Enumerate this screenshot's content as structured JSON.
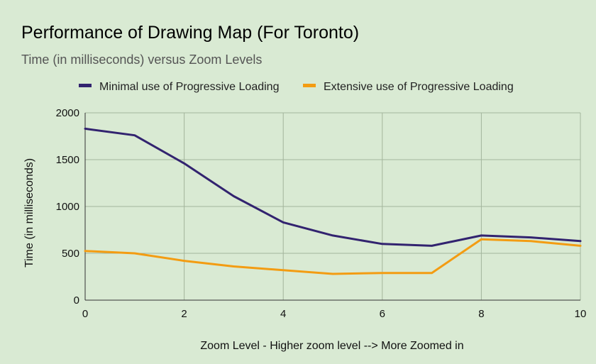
{
  "chart_data": {
    "type": "line",
    "title": "Performance of Drawing Map (For Toronto)",
    "subtitle": "Time (in milliseconds) versus Zoom Levels",
    "xlabel": "Zoom Level - Higher zoom level --> More Zoomed in",
    "ylabel": "Time (in milliseconds)",
    "xlim": [
      0,
      10
    ],
    "ylim": [
      0,
      2000
    ],
    "xticks": [
      0,
      2,
      4,
      6,
      8,
      10
    ],
    "yticks": [
      0,
      500,
      1000,
      1500,
      2000
    ],
    "grid": true,
    "legend_position": "top",
    "x": [
      0,
      1,
      2,
      3,
      4,
      5,
      6,
      7,
      8,
      9,
      10
    ],
    "series": [
      {
        "name": "Minimal use of Progressive Loading",
        "color": "#32236f",
        "values": [
          1830,
          1760,
          1460,
          1110,
          830,
          690,
          600,
          580,
          690,
          670,
          630
        ]
      },
      {
        "name": "Extensive use of Progressive Loading",
        "color": "#f39c12",
        "values": [
          525,
          500,
          420,
          360,
          320,
          280,
          290,
          290,
          650,
          630,
          580
        ]
      }
    ]
  }
}
